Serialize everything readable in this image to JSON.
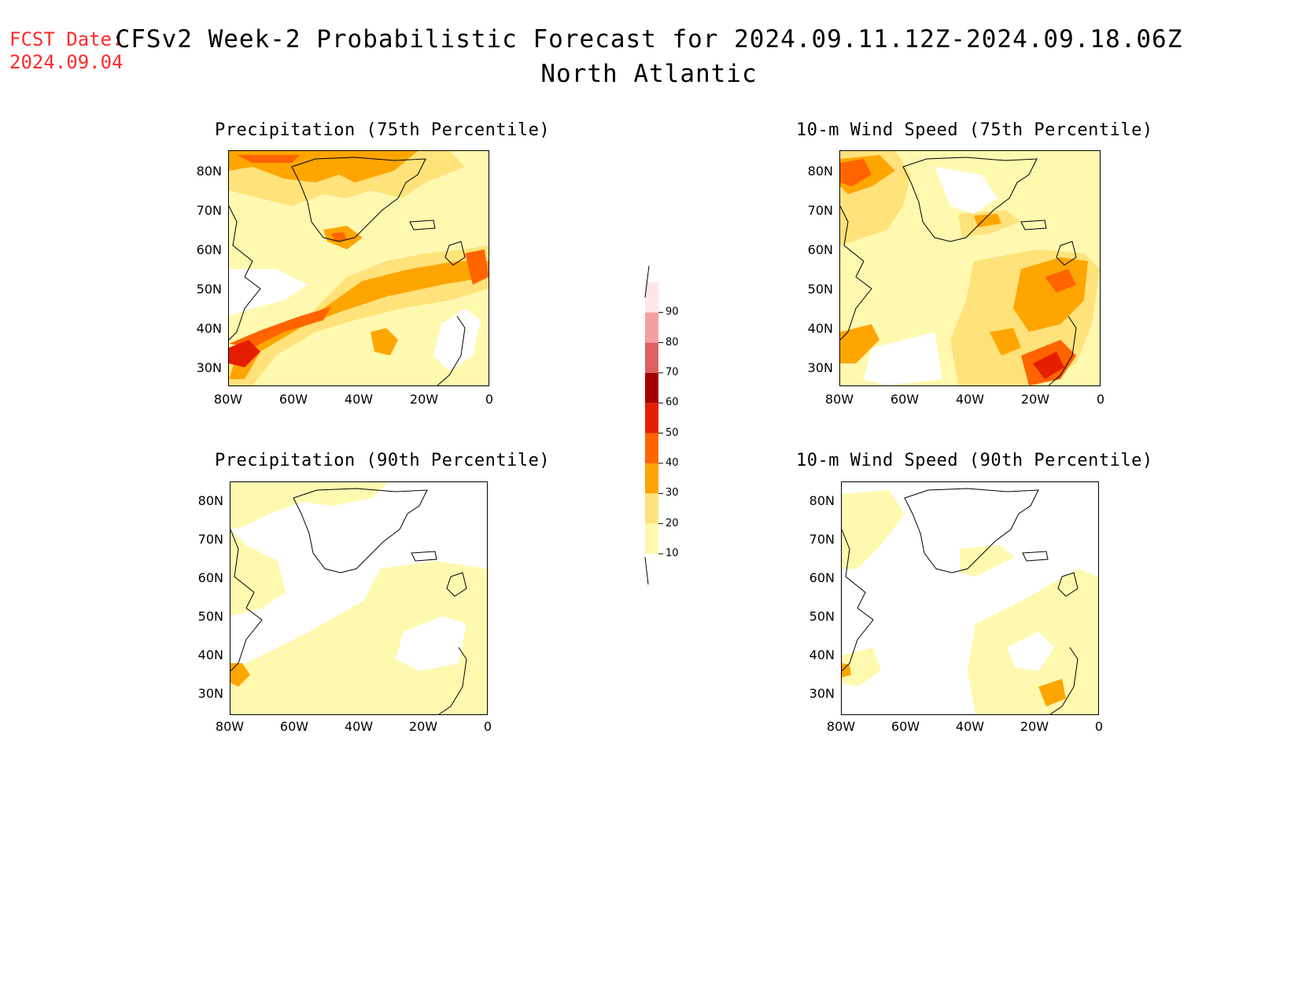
{
  "header": {
    "fcst_label": "FCST Date:",
    "fcst_date": "2024.09.04",
    "title": "CFSv2 Week-2 Probabilistic Forecast for 2024.09.11.12Z-2024.09.18.06Z",
    "subtitle": "North Atlantic"
  },
  "panels": [
    {
      "title": "Precipitation (75th Percentile)"
    },
    {
      "title": "10-m Wind Speed (75th Percentile)"
    },
    {
      "title": "Precipitation (90th Percentile)"
    },
    {
      "title": "10-m Wind Speed (90th Percentile)"
    }
  ],
  "axes": {
    "lat_labels": [
      "80N",
      "70N",
      "60N",
      "50N",
      "40N",
      "30N"
    ],
    "lon_labels": [
      "80W",
      "60W",
      "40W",
      "20W",
      "0"
    ]
  },
  "colorbar": {
    "levels": [
      "10",
      "20",
      "30",
      "40",
      "50",
      "60",
      "70",
      "80",
      "90"
    ],
    "colors": [
      "#fff9b0",
      "#ffe27a",
      "#ffa500",
      "#ff6400",
      "#e61e00",
      "#a50000",
      "#e06060",
      "#f5a0a0",
      "#ffe6e6"
    ]
  }
}
